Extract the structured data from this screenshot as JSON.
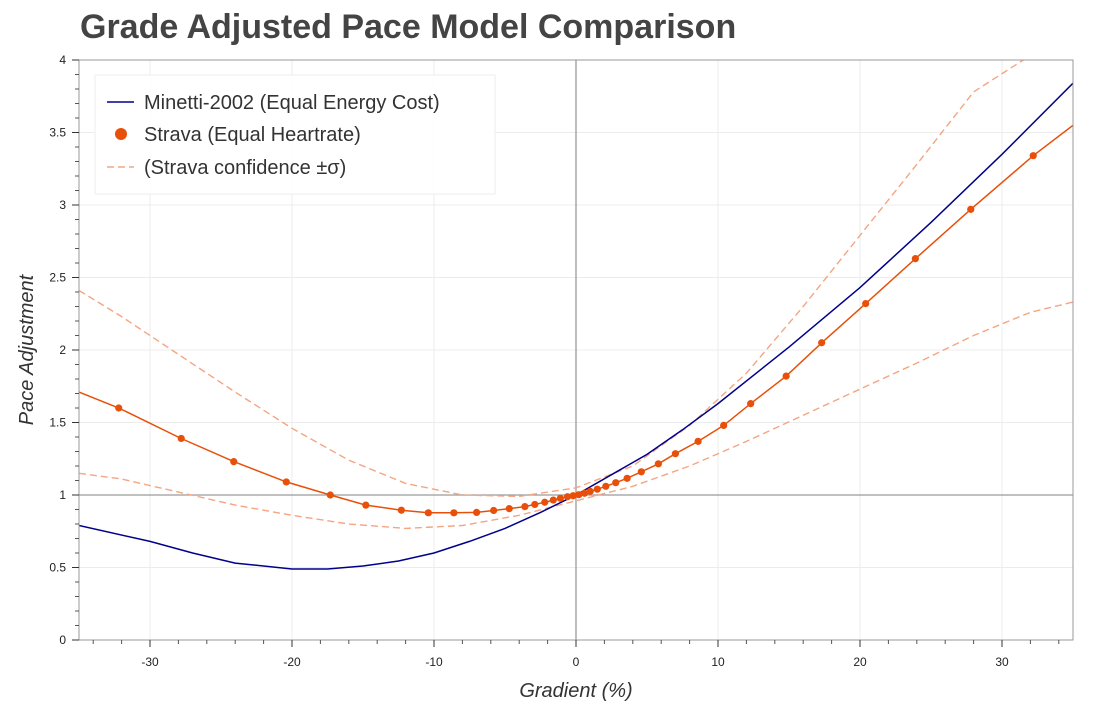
{
  "chart_data": {
    "type": "line",
    "title": "Grade Adjusted Pace Model Comparison",
    "xlabel": "Gradient (%)",
    "ylabel": "Pace Adjustment",
    "xlim": [
      -35,
      35
    ],
    "ylim": [
      0,
      4
    ],
    "x_ticks": [
      -30,
      -20,
      -10,
      0,
      10,
      20,
      30
    ],
    "y_ticks": [
      0,
      0.5,
      1,
      1.5,
      2,
      2.5,
      3,
      3.5,
      4
    ],
    "x_tick_labels": [
      "-30",
      "-20",
      "-10",
      "0",
      "10",
      "20",
      "30"
    ],
    "y_tick_labels": [
      "0",
      "0.5",
      "1",
      "1.5",
      "2",
      "2.5",
      "3",
      "3.5",
      "4"
    ],
    "grid": true,
    "reference_lines": {
      "x": 0,
      "y": 1
    },
    "legend_position": "top-left",
    "series": [
      {
        "name": "Minetti-2002 (Equal Energy Cost)",
        "style": "line",
        "color": "#00008b",
        "x": [
          -35,
          -30,
          -27,
          -24,
          -20,
          -17.5,
          -15,
          -12.5,
          -10,
          -7.5,
          -5,
          -2.5,
          0,
          2.5,
          5,
          7.5,
          10,
          15,
          20,
          25,
          30,
          35
        ],
        "y": [
          0.79,
          0.68,
          0.6,
          0.53,
          0.49,
          0.49,
          0.51,
          0.545,
          0.6,
          0.68,
          0.77,
          0.88,
          1.0,
          1.14,
          1.28,
          1.45,
          1.63,
          2.02,
          2.43,
          2.88,
          3.35,
          3.84
        ]
      },
      {
        "name": "Strava (Equal Heartrate)",
        "style": "line+markers",
        "color": "#e8500a",
        "x": [
          -35,
          -32.2,
          -27.8,
          -24.1,
          -20.4,
          -17.3,
          -14.8,
          -12.3,
          -10.4,
          -8.6,
          -7.0,
          -5.8,
          -4.7,
          -3.6,
          -2.9,
          -2.2,
          -1.6,
          -1.1,
          -0.6,
          -0.2,
          0.2,
          0.6,
          1.0,
          1.5,
          2.1,
          2.8,
          3.6,
          4.6,
          5.8,
          7.0,
          8.6,
          10.4,
          12.3,
          14.8,
          17.3,
          20.4,
          23.9,
          27.8,
          32.2,
          35
        ],
        "y": [
          1.71,
          1.6,
          1.39,
          1.23,
          1.09,
          1.0,
          0.93,
          0.895,
          0.877,
          0.877,
          0.88,
          0.893,
          0.906,
          0.92,
          0.935,
          0.95,
          0.965,
          0.977,
          0.988,
          0.995,
          1.002,
          1.012,
          1.025,
          1.04,
          1.06,
          1.085,
          1.115,
          1.16,
          1.215,
          1.285,
          1.37,
          1.48,
          1.63,
          1.82,
          2.05,
          2.32,
          2.63,
          2.97,
          3.34,
          3.55
        ],
        "marker_x": [
          -32.2,
          -27.8,
          -24.1,
          -20.4,
          -17.3,
          -14.8,
          -12.3,
          -10.4,
          -8.6,
          -7.0,
          -5.8,
          -4.7,
          -3.6,
          -2.9,
          -2.2,
          -1.6,
          -1.1,
          -0.6,
          -0.2,
          0.2,
          0.6,
          1.0,
          1.5,
          2.1,
          2.8,
          3.6,
          4.6,
          5.8,
          7.0,
          8.6,
          10.4,
          12.3,
          14.8,
          17.3,
          20.4,
          23.9,
          27.8,
          32.2
        ]
      },
      {
        "name": "(Strava confidence ±σ)",
        "style": "dashed",
        "color": "#f4a582",
        "upper": {
          "x": [
            -35,
            -32,
            -28,
            -24,
            -20,
            -16,
            -12,
            -8,
            -4,
            0,
            4,
            8,
            12,
            16,
            20,
            24,
            28,
            31.5
          ],
          "y": [
            2.41,
            2.23,
            1.97,
            1.71,
            1.46,
            1.24,
            1.08,
            1.0,
            0.99,
            1.05,
            1.2,
            1.48,
            1.84,
            2.3,
            2.79,
            3.28,
            3.78,
            4.0
          ]
        },
        "lower": {
          "x": [
            -35,
            -32,
            -28,
            -24,
            -20,
            -16,
            -12,
            -8,
            -4,
            0,
            4,
            8,
            12,
            16,
            20,
            24,
            28,
            32,
            35
          ],
          "y": [
            1.15,
            1.11,
            1.02,
            0.93,
            0.86,
            0.8,
            0.77,
            0.79,
            0.86,
            0.96,
            1.06,
            1.2,
            1.37,
            1.55,
            1.73,
            1.91,
            2.1,
            2.26,
            2.33
          ]
        }
      }
    ]
  }
}
